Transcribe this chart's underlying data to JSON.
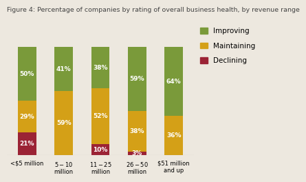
{
  "title": "Figure 4: Percentage of companies by rating of overall business health, by revenue range",
  "categories": [
    "<$5 million",
    "$5 - $10\nmillion",
    "$11 - $25\nmillion",
    "$26 - $50\nmillion",
    "$51 million\nand up"
  ],
  "declining": [
    21,
    0,
    10,
    3,
    0
  ],
  "maintaining": [
    29,
    59,
    52,
    38,
    36
  ],
  "improving": [
    50,
    41,
    38,
    59,
    64
  ],
  "declining_labels": [
    "21%",
    "",
    "10%",
    "3%",
    ""
  ],
  "maintaining_labels": [
    "29%",
    "59%",
    "52%",
    "38%",
    "36%"
  ],
  "improving_labels": [
    "50%",
    "41%",
    "38%",
    "59%",
    "64%"
  ],
  "color_declining": "#9B2335",
  "color_maintaining": "#D4A017",
  "color_improving": "#7A9A3A",
  "background_color": "#ede8df",
  "title_fontsize": 6.8,
  "label_fontsize": 6.5,
  "legend_fontsize": 7.5,
  "bar_width": 0.5
}
